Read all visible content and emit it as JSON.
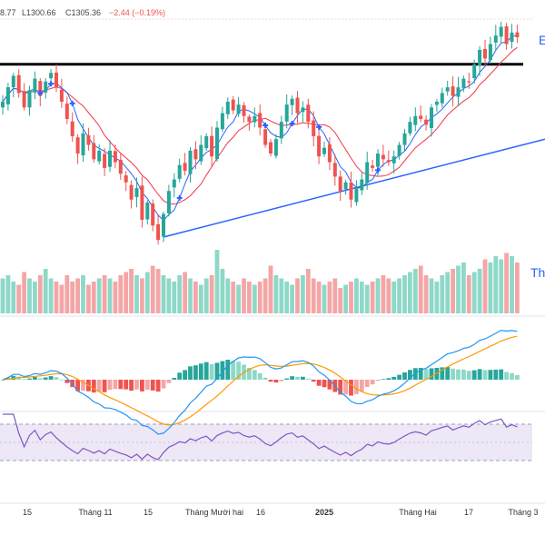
{
  "header": {
    "open_fragment": "8.77",
    "low": "L1300.66",
    "close": "C1305.36",
    "change": "−2.44 (−0.19%)"
  },
  "edge_labels": {
    "resistance_tag": "E",
    "volume_tag": "Th"
  },
  "x_axis": {
    "labels": [
      "15",
      "Tháng 11",
      "15",
      "Tháng Mười hai",
      "16",
      "2025",
      "Tháng Hai",
      "17",
      "Tháng 3"
    ],
    "bold_label": "2025"
  },
  "colors": {
    "up": "#26a69a",
    "down": "#ef5350",
    "up_volume": "#8ed8c8",
    "down_volume": "#f4a6a6",
    "ma_fast": "#2962ff",
    "ma_slow": "#f23645",
    "trendline": "#2962ff",
    "resistance": "#000000",
    "macd_line": "#2196f3",
    "signal_line": "#ff9800",
    "rsi_line": "#7e57c2",
    "rsi_band": "#ede7f6"
  },
  "chart_data": [
    {
      "type": "candlestick",
      "panel": "price",
      "x_unit": "trading session",
      "sessions": 97,
      "ylim": [
        1230,
        1312
      ],
      "last_close": 1305.36,
      "resistance_level": 1296,
      "trendline": {
        "from_session": 30,
        "from_value": 1236,
        "to_session": 97,
        "to_value": 1270
      },
      "moving_averages": [
        "fast",
        "slow"
      ],
      "close_path": [
        1283,
        1288,
        1292,
        1286,
        1281,
        1287,
        1291,
        1285,
        1290,
        1293,
        1288,
        1283,
        1277,
        1271,
        1265,
        1272,
        1268,
        1263,
        1266,
        1260,
        1266,
        1262,
        1258,
        1255,
        1249,
        1253,
        1242,
        1248,
        1240,
        1235,
        1244,
        1252,
        1256,
        1261,
        1259,
        1266,
        1263,
        1268,
        1271,
        1264,
        1274,
        1279,
        1283,
        1280,
        1282,
        1278,
        1276,
        1278,
        1274,
        1268,
        1265,
        1270,
        1276,
        1282,
        1284,
        1279,
        1281,
        1276,
        1271,
        1264,
        1267,
        1262,
        1257,
        1252,
        1255,
        1249,
        1253,
        1256,
        1262,
        1260,
        1265,
        1263,
        1262,
        1264,
        1268,
        1272,
        1276,
        1278,
        1277,
        1275,
        1281,
        1283,
        1286,
        1288,
        1285,
        1288,
        1291,
        1290,
        1296,
        1301,
        1298,
        1303,
        1306,
        1309,
        1303,
        1307,
        1305.36
      ]
    },
    {
      "type": "bar",
      "panel": "volume",
      "relative_volume": [
        0.55,
        0.6,
        0.5,
        0.45,
        0.65,
        0.55,
        0.5,
        0.6,
        0.7,
        0.55,
        0.5,
        0.45,
        0.6,
        0.5,
        0.55,
        0.6,
        0.45,
        0.5,
        0.55,
        0.6,
        0.55,
        0.5,
        0.6,
        0.65,
        0.7,
        0.6,
        0.55,
        0.65,
        0.75,
        0.7,
        0.6,
        0.55,
        0.5,
        0.6,
        0.65,
        0.55,
        0.5,
        0.45,
        0.55,
        0.6,
        1.0,
        0.7,
        0.55,
        0.5,
        0.45,
        0.55,
        0.5,
        0.45,
        0.5,
        0.55,
        0.75,
        0.6,
        0.55,
        0.5,
        0.45,
        0.55,
        0.6,
        0.7,
        0.55,
        0.5,
        0.45,
        0.5,
        0.55,
        0.4,
        0.45,
        0.5,
        0.55,
        0.5,
        0.45,
        0.5,
        0.55,
        0.6,
        0.55,
        0.5,
        0.55,
        0.6,
        0.65,
        0.7,
        0.75,
        0.6,
        0.55,
        0.5,
        0.6,
        0.65,
        0.7,
        0.75,
        0.8,
        0.6,
        0.65,
        0.7,
        0.85,
        0.8,
        0.9,
        0.85,
        0.95,
        0.9,
        0.8
      ]
    },
    {
      "type": "line",
      "panel": "macd",
      "series": [
        "macd",
        "signal",
        "histogram"
      ]
    },
    {
      "type": "line",
      "panel": "rsi",
      "ylim": [
        0,
        100
      ],
      "band": [
        30,
        70
      ],
      "grid": false
    }
  ]
}
